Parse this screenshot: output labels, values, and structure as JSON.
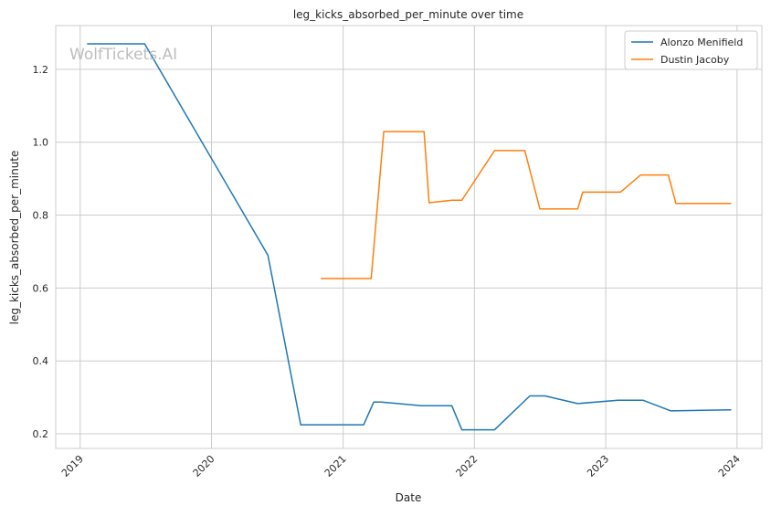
{
  "chart_data": {
    "type": "line",
    "title": "leg_kicks_absorbed_per_minute over time",
    "xlabel": "Date",
    "ylabel": "leg_kicks_absorbed_per_minute",
    "xlim": [
      "2018-10-25",
      "2024-03-10"
    ],
    "ylim": [
      0.16,
      1.32
    ],
    "x_ticks": [
      "2019",
      "2020",
      "2021",
      "2022",
      "2023",
      "2024"
    ],
    "y_ticks": [
      "0.2",
      "0.4",
      "0.6",
      "0.8",
      "1.0",
      "1.2"
    ],
    "grid": true,
    "legend_position": "top-right",
    "watermark": "WolfTickets.AI",
    "series": [
      {
        "name": "Alonzo Menifield",
        "color": "#1f77b4",
        "points": [
          [
            "2019-01-20",
            1.27
          ],
          [
            "2019-06-29",
            1.27
          ],
          [
            "2020-06-06",
            0.69
          ],
          [
            "2020-09-05",
            0.225
          ],
          [
            "2021-02-27",
            0.225
          ],
          [
            "2021-03-27",
            0.287
          ],
          [
            "2021-04-17",
            0.287
          ],
          [
            "2021-08-07",
            0.277
          ],
          [
            "2021-10-30",
            0.277
          ],
          [
            "2021-11-27",
            0.211
          ],
          [
            "2022-02-26",
            0.211
          ],
          [
            "2022-06-04",
            0.304
          ],
          [
            "2022-07-16",
            0.304
          ],
          [
            "2022-10-15",
            0.283
          ],
          [
            "2023-02-04",
            0.292
          ],
          [
            "2023-04-15",
            0.292
          ],
          [
            "2023-07-01",
            0.263
          ],
          [
            "2023-12-16",
            0.266
          ]
        ]
      },
      {
        "name": "Dustin Jacoby",
        "color": "#ff7f0e",
        "points": [
          [
            "2020-10-31",
            0.626
          ],
          [
            "2021-03-20",
            0.626
          ],
          [
            "2021-04-24",
            1.029
          ],
          [
            "2021-08-14",
            1.029
          ],
          [
            "2021-08-28",
            0.834
          ],
          [
            "2021-10-30",
            0.841
          ],
          [
            "2021-11-27",
            0.841
          ],
          [
            "2022-02-26",
            0.977
          ],
          [
            "2022-05-21",
            0.977
          ],
          [
            "2022-07-02",
            0.817
          ],
          [
            "2022-10-15",
            0.817
          ],
          [
            "2022-10-29",
            0.863
          ],
          [
            "2023-02-11",
            0.863
          ],
          [
            "2023-04-08",
            0.91
          ],
          [
            "2023-06-24",
            0.91
          ],
          [
            "2023-07-15",
            0.832
          ],
          [
            "2023-12-16",
            0.832
          ]
        ]
      }
    ]
  }
}
